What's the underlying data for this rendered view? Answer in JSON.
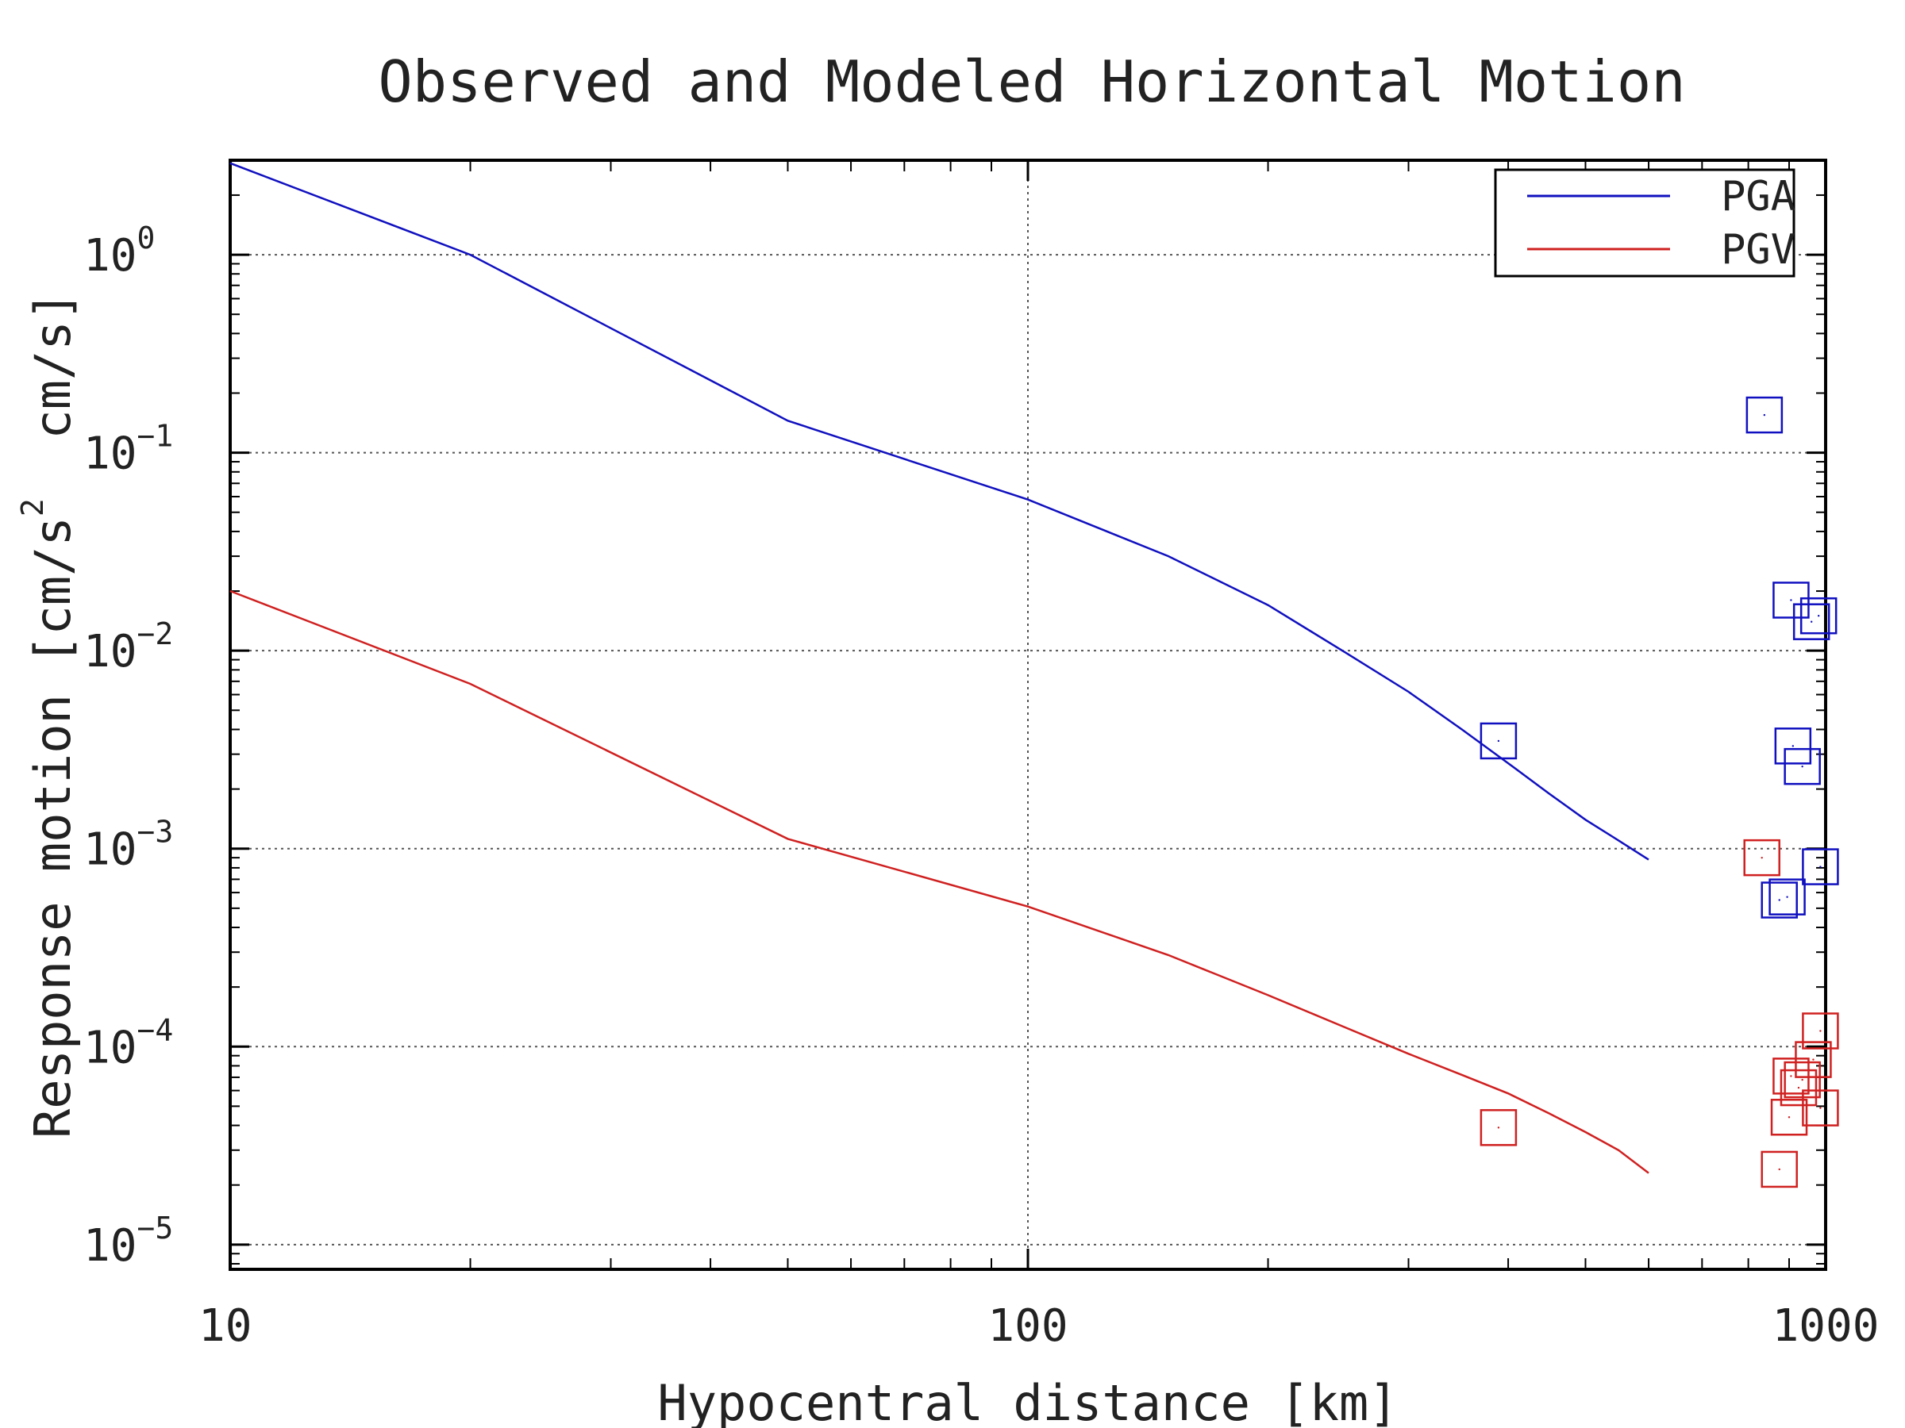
{
  "chart_data": {
    "type": "scatter",
    "title": "Observed and Modeled Horizontal Motion",
    "xlabel": "Hypocentral distance [km]",
    "ylabel": {
      "prefix": "Response motion [cm/s",
      "superscript": "2",
      "suffix": "  cm/s]"
    },
    "x_scale": "log",
    "y_scale": "log",
    "xlim": [
      10,
      1000
    ],
    "ylim": [
      7.5e-06,
      3
    ],
    "x_ticks": [
      {
        "value": 10,
        "label": "10"
      },
      {
        "value": 100,
        "label": "100"
      },
      {
        "value": 1000,
        "label": "1000"
      }
    ],
    "y_ticks": [
      {
        "value": 1,
        "base": "10",
        "exp": "0"
      },
      {
        "value": 0.1,
        "base": "10",
        "exp": "−1"
      },
      {
        "value": 0.01,
        "base": "10",
        "exp": "−2"
      },
      {
        "value": 0.001,
        "base": "10",
        "exp": "−3"
      },
      {
        "value": 0.0001,
        "base": "10",
        "exp": "−4"
      },
      {
        "value": 1e-05,
        "base": "10",
        "exp": "−5"
      }
    ],
    "grid": true,
    "legend_position": "top-right",
    "legend": [
      {
        "label": "PGA",
        "color": "#1010c0"
      },
      {
        "label": "PGV",
        "color": "#d02020"
      }
    ],
    "model_series": [
      {
        "name": "PGA",
        "color": "#1010c0",
        "points": [
          [
            10,
            2.9
          ],
          [
            20,
            1.0
          ],
          [
            50,
            0.145
          ],
          [
            100,
            0.058
          ],
          [
            150,
            0.03
          ],
          [
            200,
            0.017
          ],
          [
            250,
            0.0098
          ],
          [
            300,
            0.0062
          ],
          [
            350,
            0.004
          ],
          [
            400,
            0.0027
          ],
          [
            450,
            0.0019
          ],
          [
            500,
            0.0014
          ],
          [
            550,
            0.0011
          ],
          [
            600,
            0.00088
          ]
        ]
      },
      {
        "name": "PGV",
        "color": "#d02020",
        "points": [
          [
            10,
            0.02
          ],
          [
            20,
            0.0068
          ],
          [
            50,
            0.00112
          ],
          [
            100,
            0.00051
          ],
          [
            150,
            0.00029
          ],
          [
            200,
            0.000182
          ],
          [
            250,
            0.000125
          ],
          [
            300,
            9.2e-05
          ],
          [
            350,
            7.2e-05
          ],
          [
            400,
            5.8e-05
          ],
          [
            450,
            4.6e-05
          ],
          [
            500,
            3.7e-05
          ],
          [
            550,
            3e-05
          ],
          [
            600,
            2.3e-05
          ]
        ]
      }
    ],
    "observed_series": [
      {
        "name": "PGA",
        "color": "#1010c0",
        "points": [
          [
            389,
            0.0035
          ],
          [
            838,
            0.155
          ],
          [
            905,
            0.018
          ],
          [
            960,
            0.014
          ],
          [
            980,
            0.015
          ],
          [
            910,
            0.0033
          ],
          [
            935,
            0.0026
          ],
          [
            875,
            0.00055
          ],
          [
            895,
            0.00057
          ],
          [
            985,
            0.00081
          ]
        ]
      },
      {
        "name": "PGV",
        "color": "#d02020",
        "points": [
          [
            389,
            3.9e-05
          ],
          [
            832,
            0.0009
          ],
          [
            875,
            2.4e-05
          ],
          [
            900,
            4.4e-05
          ],
          [
            905,
            7.1e-05
          ],
          [
            925,
            6.2e-05
          ],
          [
            935,
            6.8e-05
          ],
          [
            965,
            8.6e-05
          ],
          [
            985,
            0.00012
          ],
          [
            985,
            4.9e-05
          ]
        ]
      }
    ]
  }
}
